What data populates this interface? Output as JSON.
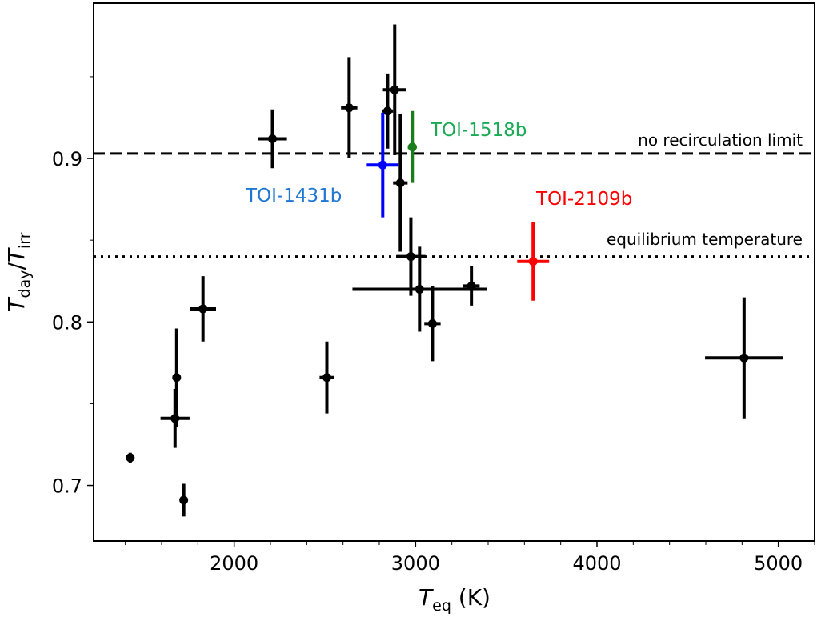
{
  "chart_data": {
    "type": "scatter",
    "title": "",
    "xlabel": {
      "main": "T",
      "sub": "eq",
      "unit": " (K)"
    },
    "ylabel": {
      "num": "T",
      "num_sub": "day",
      "slash": "/",
      "den": "T",
      "den_sub": "irr"
    },
    "xlim": [
      1225,
      5200
    ],
    "ylim": [
      0.666,
      0.995
    ],
    "xticks": [
      2000,
      3000,
      4000,
      5000
    ],
    "xtick_labels": [
      "2000",
      "3000",
      "4000",
      "5000"
    ],
    "xminor_step": 200,
    "yticks": [
      0.7,
      0.8,
      0.9
    ],
    "ytick_labels": [
      "0.7",
      "0.8",
      "0.9"
    ],
    "yminor": [
      0.75,
      0.85,
      0.95
    ],
    "grid": false,
    "reference_lines": [
      {
        "name": "no-recirculation-limit",
        "y": 0.903,
        "style": "dashed",
        "label": "no recirculation limit"
      },
      {
        "name": "equilibrium-temperature",
        "y": 0.84,
        "style": "dotted",
        "label": "equilibrium temperature"
      }
    ],
    "series": [
      {
        "name": "literature",
        "color": "#000000",
        "points": [
          {
            "x": 1427,
            "y": 0.717,
            "xerr": 5,
            "yerr": 0.003
          },
          {
            "x": 1722,
            "y": 0.691,
            "xerr": 8,
            "yerr": 0.01
          },
          {
            "x": 1683,
            "y": 0.766,
            "xerr": 10,
            "yerr": 0.03
          },
          {
            "x": 1674,
            "y": 0.741,
            "xerr": 80,
            "yerr": 0.018
          },
          {
            "x": 1828,
            "y": 0.808,
            "xerr": 72,
            "yerr": 0.02
          },
          {
            "x": 2211,
            "y": 0.912,
            "xerr": 80,
            "yerr": 0.018
          },
          {
            "x": 2511,
            "y": 0.766,
            "xerr": 40,
            "yerr": 0.022
          },
          {
            "x": 2634,
            "y": 0.931,
            "xerr": 45,
            "yerr": 0.031
          },
          {
            "x": 2846,
            "y": 0.929,
            "xerr": 30,
            "yerr": 0.023
          },
          {
            "x": 2885,
            "y": 0.942,
            "xerr": 65,
            "yerr": 0.04
          },
          {
            "x": 2916,
            "y": 0.885,
            "xerr": 40,
            "yerr": 0.042
          },
          {
            "x": 2974,
            "y": 0.84,
            "xerr": 80,
            "yerr": 0.024
          },
          {
            "x": 3022,
            "y": 0.82,
            "xerr": 370,
            "yerr": 0.026
          },
          {
            "x": 3093,
            "y": 0.799,
            "xerr": 45,
            "yerr": 0.023
          },
          {
            "x": 3308,
            "y": 0.822,
            "xerr": 45,
            "yerr": 0.012
          },
          {
            "x": 4811,
            "y": 0.778,
            "xerr": 215,
            "yerr": 0.037
          }
        ]
      },
      {
        "name": "TOI-1431b",
        "label": "TOI-1431b",
        "color": "#0000ff",
        "label_color": "#1f77d4",
        "points": [
          {
            "x": 2819,
            "y": 0.896,
            "xerr": 88,
            "yerr": 0.032
          }
        ]
      },
      {
        "name": "TOI-1518b",
        "label": "TOI-1518b",
        "color": "#1a7f1a",
        "label_color": "#1aaa55",
        "points": [
          {
            "x": 2982,
            "y": 0.907,
            "xerr": 25,
            "yerr": 0.022
          }
        ]
      },
      {
        "name": "TOI-2109b",
        "label": "TOI-2109b",
        "color": "#ff0000",
        "label_color": "#ff0000",
        "points": [
          {
            "x": 3648,
            "y": 0.837,
            "xerr": 88,
            "yerr": 0.024
          }
        ]
      }
    ]
  }
}
